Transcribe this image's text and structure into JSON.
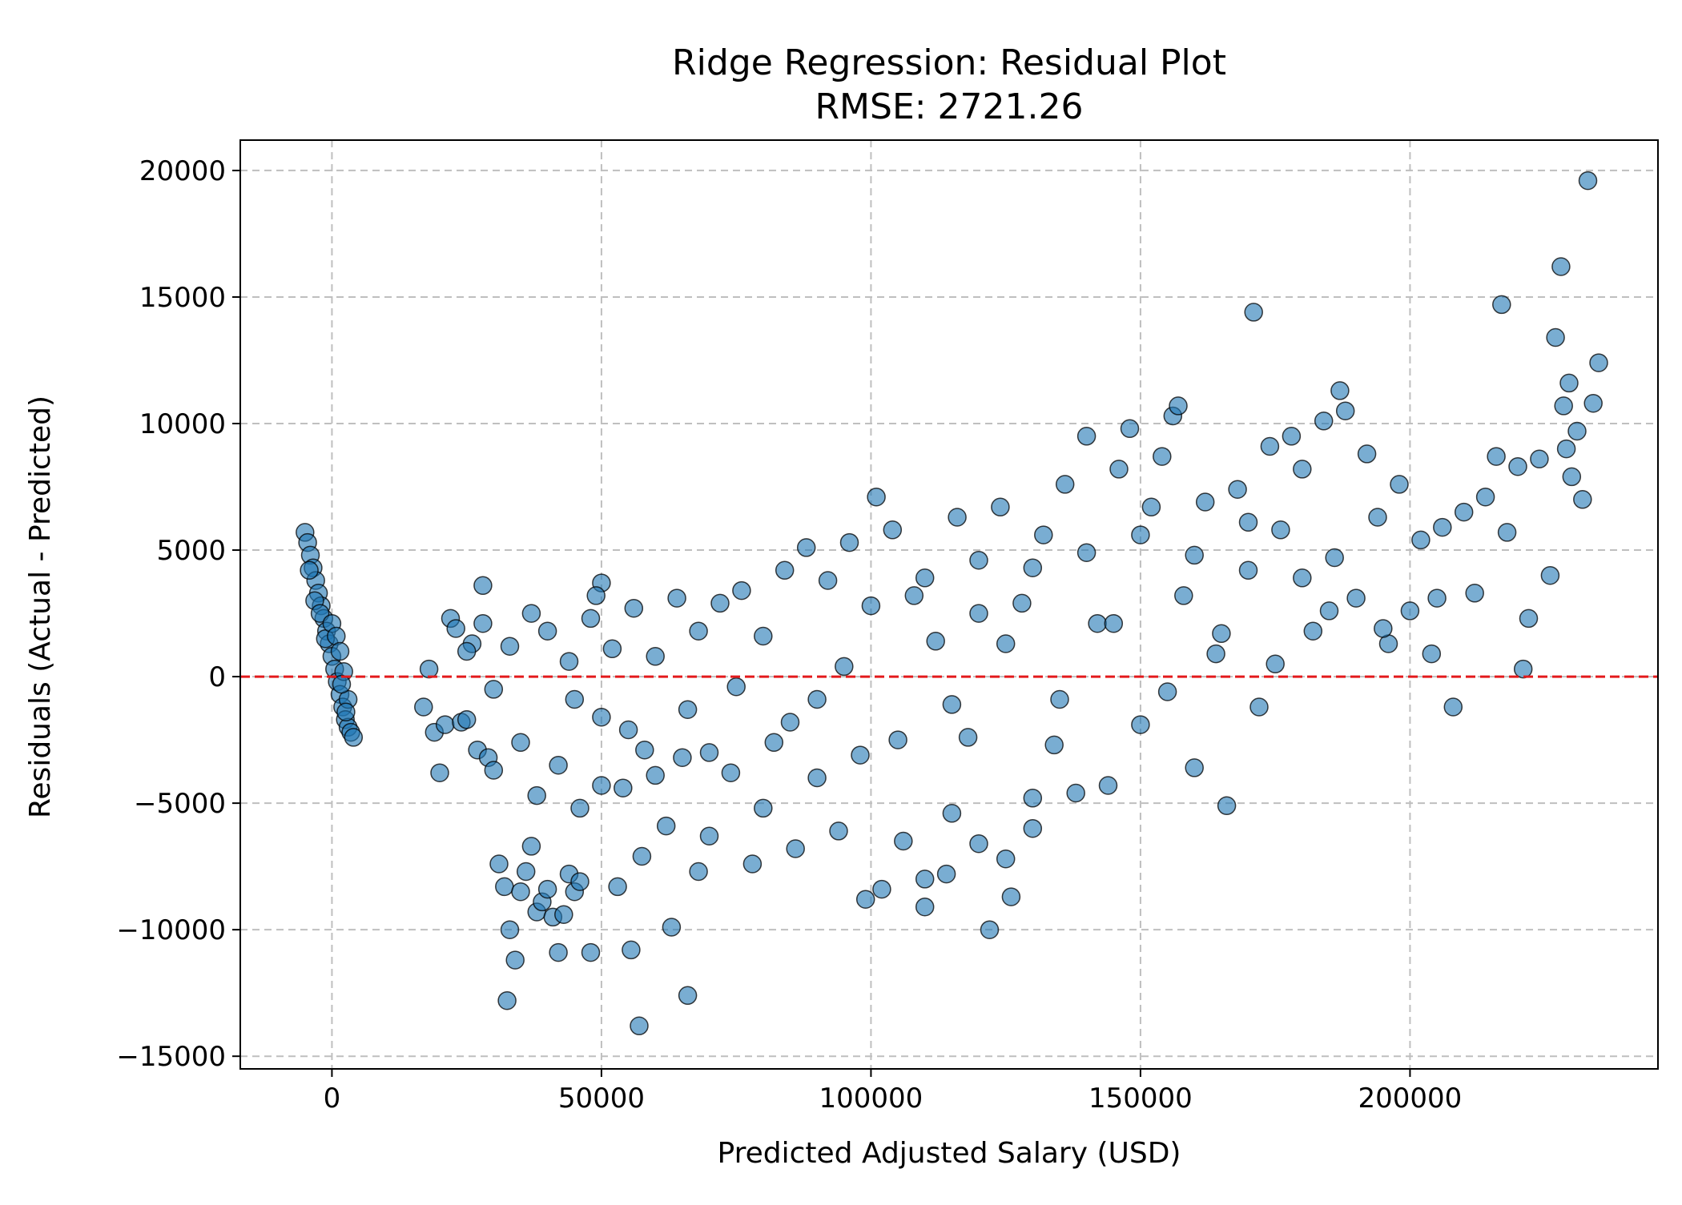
{
  "chart_data": {
    "type": "scatter",
    "title": "Ridge Regression: Residual Plot",
    "subtitle": "RMSE: 2721.26",
    "xlabel": "Predicted Adjusted Salary (USD)",
    "ylabel": "Residuals (Actual - Predicted)",
    "xlim": [
      -17000,
      246000
    ],
    "ylim": [
      -15500,
      21200
    ],
    "x_ticks": [
      0,
      50000,
      100000,
      150000,
      200000
    ],
    "x_tick_labels": [
      "0",
      "50000",
      "100000",
      "150000",
      "200000"
    ],
    "y_ticks": [
      -15000,
      -10000,
      -5000,
      0,
      5000,
      10000,
      15000,
      20000
    ],
    "y_tick_labels": [
      "−15000",
      "−10000",
      "−5000",
      "0",
      "5000",
      "10000",
      "15000",
      "20000"
    ],
    "grid": true,
    "reference_line": {
      "y": 0,
      "color": "#e31a1c",
      "style": "dashed"
    },
    "colors": {
      "points": "#1f77b4",
      "point_edge": "#000000",
      "reference_line": "#e31a1c",
      "grid": "#bfbfbf"
    },
    "series": [
      {
        "points": [
          [
            -5000,
            5700
          ],
          [
            -4500,
            5300
          ],
          [
            -4000,
            4800
          ],
          [
            -3500,
            4300
          ],
          [
            -3000,
            3800
          ],
          [
            -2500,
            3300
          ],
          [
            -2000,
            2800
          ],
          [
            -1500,
            2300
          ],
          [
            -1000,
            1800
          ],
          [
            -500,
            1300
          ],
          [
            0,
            800
          ],
          [
            500,
            300
          ],
          [
            1000,
            -200
          ],
          [
            1500,
            -700
          ],
          [
            2000,
            -1200
          ],
          [
            2500,
            -1700
          ],
          [
            3000,
            -2000
          ],
          [
            3500,
            -2200
          ],
          [
            4000,
            -2400
          ],
          [
            -4200,
            4200
          ],
          [
            -3200,
            3000
          ],
          [
            -2200,
            2500
          ],
          [
            -1200,
            1500
          ],
          [
            0,
            2100
          ],
          [
            800,
            1600
          ],
          [
            1500,
            1000
          ],
          [
            2200,
            200
          ],
          [
            3000,
            -900
          ],
          [
            2600,
            -1400
          ],
          [
            1800,
            -300
          ],
          [
            17000,
            -1200
          ],
          [
            18000,
            300
          ],
          [
            19000,
            -2200
          ],
          [
            20000,
            -3800
          ],
          [
            21000,
            -1900
          ],
          [
            22000,
            2300
          ],
          [
            23000,
            1900
          ],
          [
            24000,
            -1800
          ],
          [
            25000,
            -1700
          ],
          [
            26000,
            1300
          ],
          [
            27000,
            -2900
          ],
          [
            28000,
            3600
          ],
          [
            29000,
            -3200
          ],
          [
            30000,
            -3700
          ],
          [
            31000,
            -7400
          ],
          [
            32000,
            -8300
          ],
          [
            32500,
            -12800
          ],
          [
            33000,
            -10000
          ],
          [
            34000,
            -11200
          ],
          [
            35000,
            -8500
          ],
          [
            36000,
            -7700
          ],
          [
            37000,
            -6700
          ],
          [
            38000,
            -9300
          ],
          [
            39000,
            -8900
          ],
          [
            40000,
            -8400
          ],
          [
            41000,
            -9500
          ],
          [
            42000,
            -10900
          ],
          [
            43000,
            -9400
          ],
          [
            44000,
            -7800
          ],
          [
            45000,
            -8500
          ],
          [
            46000,
            -8100
          ],
          [
            48000,
            -10900
          ],
          [
            50000,
            3700
          ],
          [
            49000,
            3200
          ],
          [
            53000,
            -8300
          ],
          [
            55500,
            -10800
          ],
          [
            57000,
            -13800
          ],
          [
            57500,
            -7100
          ],
          [
            63000,
            -9900
          ],
          [
            66000,
            -12600
          ],
          [
            68000,
            -7700
          ],
          [
            25000,
            1000
          ],
          [
            28000,
            2100
          ],
          [
            30000,
            -500
          ],
          [
            33000,
            1200
          ],
          [
            35000,
            -2600
          ],
          [
            37000,
            2500
          ],
          [
            38000,
            -4700
          ],
          [
            40000,
            1800
          ],
          [
            42000,
            -3500
          ],
          [
            44000,
            600
          ],
          [
            46000,
            -5200
          ],
          [
            48000,
            2300
          ],
          [
            50000,
            -1600
          ],
          [
            52000,
            1100
          ],
          [
            54000,
            -4400
          ],
          [
            56000,
            2700
          ],
          [
            58000,
            -2900
          ],
          [
            60000,
            800
          ],
          [
            62000,
            -5900
          ],
          [
            64000,
            3100
          ],
          [
            66000,
            -1300
          ],
          [
            68000,
            1800
          ],
          [
            70000,
            -6300
          ],
          [
            72000,
            2900
          ],
          [
            74000,
            -3800
          ],
          [
            76000,
            3400
          ],
          [
            78000,
            -7400
          ],
          [
            80000,
            1600
          ],
          [
            82000,
            -2600
          ],
          [
            84000,
            4200
          ],
          [
            86000,
            -6800
          ],
          [
            88000,
            5100
          ],
          [
            90000,
            -900
          ],
          [
            92000,
            3800
          ],
          [
            94000,
            -6100
          ],
          [
            96000,
            5300
          ],
          [
            98000,
            -3100
          ],
          [
            99000,
            -8800
          ],
          [
            101000,
            7100
          ],
          [
            102000,
            -8400
          ],
          [
            104000,
            5800
          ],
          [
            106000,
            -6500
          ],
          [
            108000,
            3200
          ],
          [
            110000,
            -9100
          ],
          [
            112000,
            1400
          ],
          [
            114000,
            -7800
          ],
          [
            116000,
            6300
          ],
          [
            118000,
            -2400
          ],
          [
            120000,
            4600
          ],
          [
            122000,
            -10000
          ],
          [
            124000,
            6700
          ],
          [
            126000,
            -8700
          ],
          [
            128000,
            2900
          ],
          [
            130000,
            -6000
          ],
          [
            132000,
            5600
          ],
          [
            134000,
            -2700
          ],
          [
            136000,
            7600
          ],
          [
            138000,
            -4600
          ],
          [
            140000,
            9500
          ],
          [
            142000,
            2100
          ],
          [
            144000,
            -4300
          ],
          [
            146000,
            8200
          ],
          [
            148000,
            9800
          ],
          [
            150000,
            -1900
          ],
          [
            152000,
            6700
          ],
          [
            154000,
            8700
          ],
          [
            156000,
            10300
          ],
          [
            157000,
            10700
          ],
          [
            158000,
            3200
          ],
          [
            160000,
            -3600
          ],
          [
            162000,
            6900
          ],
          [
            164000,
            900
          ],
          [
            166000,
            -5100
          ],
          [
            168000,
            7400
          ],
          [
            170000,
            4200
          ],
          [
            171000,
            14400
          ],
          [
            172000,
            -1200
          ],
          [
            174000,
            9100
          ],
          [
            176000,
            5800
          ],
          [
            178000,
            9500
          ],
          [
            180000,
            8200
          ],
          [
            182000,
            1800
          ],
          [
            184000,
            10100
          ],
          [
            186000,
            4700
          ],
          [
            187000,
            11300
          ],
          [
            188000,
            10500
          ],
          [
            190000,
            3100
          ],
          [
            192000,
            8800
          ],
          [
            194000,
            6300
          ],
          [
            196000,
            1300
          ],
          [
            198000,
            7600
          ],
          [
            200000,
            2600
          ],
          [
            202000,
            5400
          ],
          [
            204000,
            900
          ],
          [
            206000,
            5900
          ],
          [
            208000,
            -1200
          ],
          [
            210000,
            6500
          ],
          [
            212000,
            3300
          ],
          [
            214000,
            7100
          ],
          [
            216000,
            8700
          ],
          [
            217000,
            14700
          ],
          [
            218000,
            5700
          ],
          [
            220000,
            8300
          ],
          [
            221000,
            300
          ],
          [
            222000,
            2300
          ],
          [
            224000,
            8600
          ],
          [
            226000,
            4000
          ],
          [
            227000,
            13400
          ],
          [
            228000,
            16200
          ],
          [
            228500,
            10700
          ],
          [
            229000,
            9000
          ],
          [
            229500,
            11600
          ],
          [
            230000,
            7900
          ],
          [
            231000,
            9700
          ],
          [
            232000,
            7000
          ],
          [
            233000,
            19600
          ],
          [
            234000,
            10800
          ],
          [
            235000,
            12400
          ],
          [
            45000,
            -900
          ],
          [
            55000,
            -2100
          ],
          [
            65000,
            -3200
          ],
          [
            75000,
            -400
          ],
          [
            85000,
            -1800
          ],
          [
            95000,
            400
          ],
          [
            105000,
            -2500
          ],
          [
            115000,
            -1100
          ],
          [
            125000,
            1300
          ],
          [
            135000,
            -900
          ],
          [
            145000,
            2100
          ],
          [
            155000,
            -600
          ],
          [
            165000,
            1700
          ],
          [
            175000,
            500
          ],
          [
            185000,
            2600
          ],
          [
            195000,
            1900
          ],
          [
            205000,
            3100
          ],
          [
            115000,
            -5400
          ],
          [
            120000,
            -6600
          ],
          [
            125000,
            -7200
          ],
          [
            110000,
            -8000
          ],
          [
            130000,
            -4800
          ],
          [
            90000,
            -4000
          ],
          [
            80000,
            -5200
          ],
          [
            70000,
            -3000
          ],
          [
            60000,
            -3900
          ],
          [
            50000,
            -4300
          ],
          [
            140000,
            4900
          ],
          [
            150000,
            5600
          ],
          [
            160000,
            4800
          ],
          [
            170000,
            6100
          ],
          [
            180000,
            3900
          ],
          [
            100000,
            2800
          ],
          [
            110000,
            3900
          ],
          [
            120000,
            2500
          ],
          [
            130000,
            4300
          ]
        ]
      }
    ]
  }
}
